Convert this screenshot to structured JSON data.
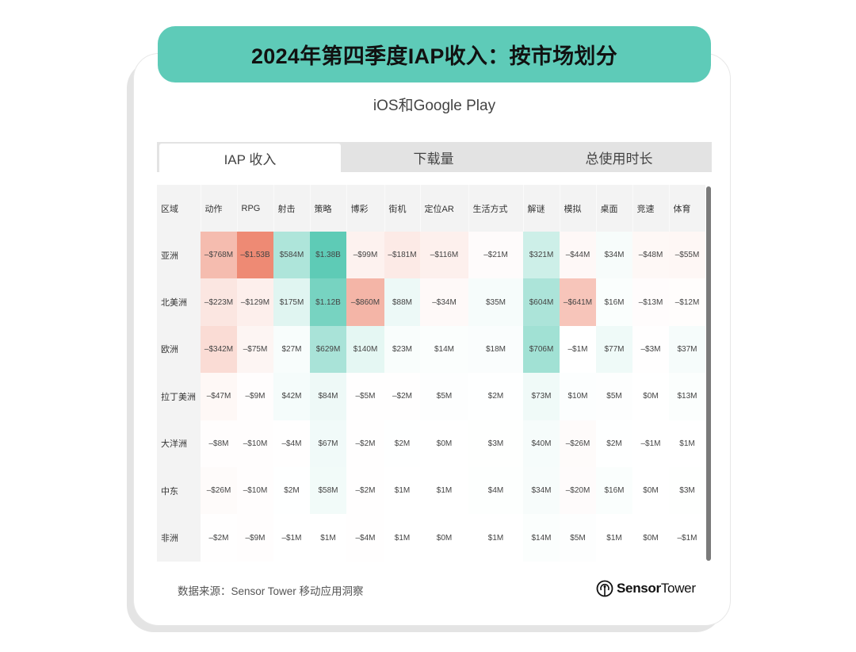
{
  "header": {
    "title": "2024年第四季度IAP收入：按市场划分",
    "subtitle": "iOS和Google Play"
  },
  "tabs": [
    {
      "label": "IAP 收入",
      "active": true
    },
    {
      "label": "下载量",
      "active": false
    },
    {
      "label": "总使用时长",
      "active": false
    }
  ],
  "footer": {
    "source": "数据来源：Sensor Tower 移动应用洞察",
    "logo_bold": "Sensor",
    "logo_regular": "Tower"
  },
  "watermark": "Sensor Tower",
  "colors": {
    "banner": "#5ecbb8",
    "positive_max": "#5ecbb6",
    "negative_max": "#ee8a74",
    "tabbar_bg": "#e3e3e3",
    "header_bg": "#f3f3f3"
  },
  "chart_data": {
    "type": "heatmap",
    "title": "2024年第四季度IAP收入：按市场划分",
    "subtitle": "iOS和Google Play",
    "row_header": "区域",
    "columns": [
      "动作",
      "RPG",
      "射击",
      "策略",
      "博彩",
      "街机",
      "定位AR",
      "生活方式",
      "解谜",
      "模拟",
      "桌面",
      "竞速",
      "体育"
    ],
    "rows": [
      {
        "region": "亚洲",
        "labels": [
          "–$768M",
          "–$1.53B",
          "$584M",
          "$1.38B",
          "–$99M",
          "–$181M",
          "–$116M",
          "–$21M",
          "$321M",
          "–$44M",
          "$34M",
          "–$48M",
          "–$55M"
        ],
        "values": [
          -768,
          -1530,
          584,
          1380,
          -99,
          -181,
          -116,
          -21,
          321,
          -44,
          34,
          -48,
          -55
        ]
      },
      {
        "region": "北美洲",
        "labels": [
          "–$223M",
          "–$129M",
          "$175M",
          "$1.12B",
          "–$860M",
          "$88M",
          "–$34M",
          "$35M",
          "$604M",
          "–$641M",
          "$16M",
          "–$13M",
          "–$12M"
        ],
        "values": [
          -223,
          -129,
          175,
          1120,
          -860,
          88,
          -34,
          35,
          604,
          -641,
          16,
          -13,
          -12
        ]
      },
      {
        "region": "欧洲",
        "labels": [
          "–$342M",
          "–$75M",
          "$27M",
          "$629M",
          "$140M",
          "$23M",
          "$14M",
          "$18M",
          "$706M",
          "–$1M",
          "$77M",
          "–$3M",
          "$37M"
        ],
        "values": [
          -342,
          -75,
          27,
          629,
          140,
          23,
          14,
          18,
          706,
          -1,
          77,
          -3,
          37
        ]
      },
      {
        "region": "拉丁美洲",
        "labels": [
          "–$47M",
          "–$9M",
          "$42M",
          "$84M",
          "–$5M",
          "–$2M",
          "$5M",
          "$2M",
          "$73M",
          "$10M",
          "$5M",
          "$0M",
          "$13M"
        ],
        "values": [
          -47,
          -9,
          42,
          84,
          -5,
          -2,
          5,
          2,
          73,
          10,
          5,
          0,
          13
        ]
      },
      {
        "region": "大洋洲",
        "labels": [
          "–$8M",
          "–$10M",
          "–$4M",
          "$67M",
          "–$2M",
          "$2M",
          "$0M",
          "$3M",
          "$40M",
          "–$26M",
          "$2M",
          "–$1M",
          "$1M"
        ],
        "values": [
          -8,
          -10,
          -4,
          67,
          -2,
          2,
          0,
          3,
          40,
          -26,
          2,
          -1,
          1
        ]
      },
      {
        "region": "中东",
        "labels": [
          "–$26M",
          "–$10M",
          "$2M",
          "$58M",
          "–$2M",
          "$1M",
          "$1M",
          "$4M",
          "$34M",
          "–$20M",
          "$16M",
          "$0M",
          "$3M"
        ],
        "values": [
          -26,
          -10,
          2,
          58,
          -2,
          1,
          1,
          4,
          34,
          -20,
          16,
          0,
          3
        ]
      },
      {
        "region": "非洲",
        "labels": [
          "–$2M",
          "–$9M",
          "–$1M",
          "$1M",
          "–$4M",
          "$1M",
          "$0M",
          "$1M",
          "$14M",
          "$5M",
          "$1M",
          "$0M",
          "–$1M"
        ],
        "values": [
          -2,
          -9,
          -1,
          1,
          -4,
          1,
          0,
          1,
          14,
          5,
          1,
          0,
          -1
        ]
      }
    ],
    "unit": "USD (M = million, B = billion)",
    "color_scale": {
      "negative": "#ee8a74",
      "zero": "#ffffff",
      "positive": "#5ecbb6",
      "min": -1530,
      "max": 1380
    }
  }
}
